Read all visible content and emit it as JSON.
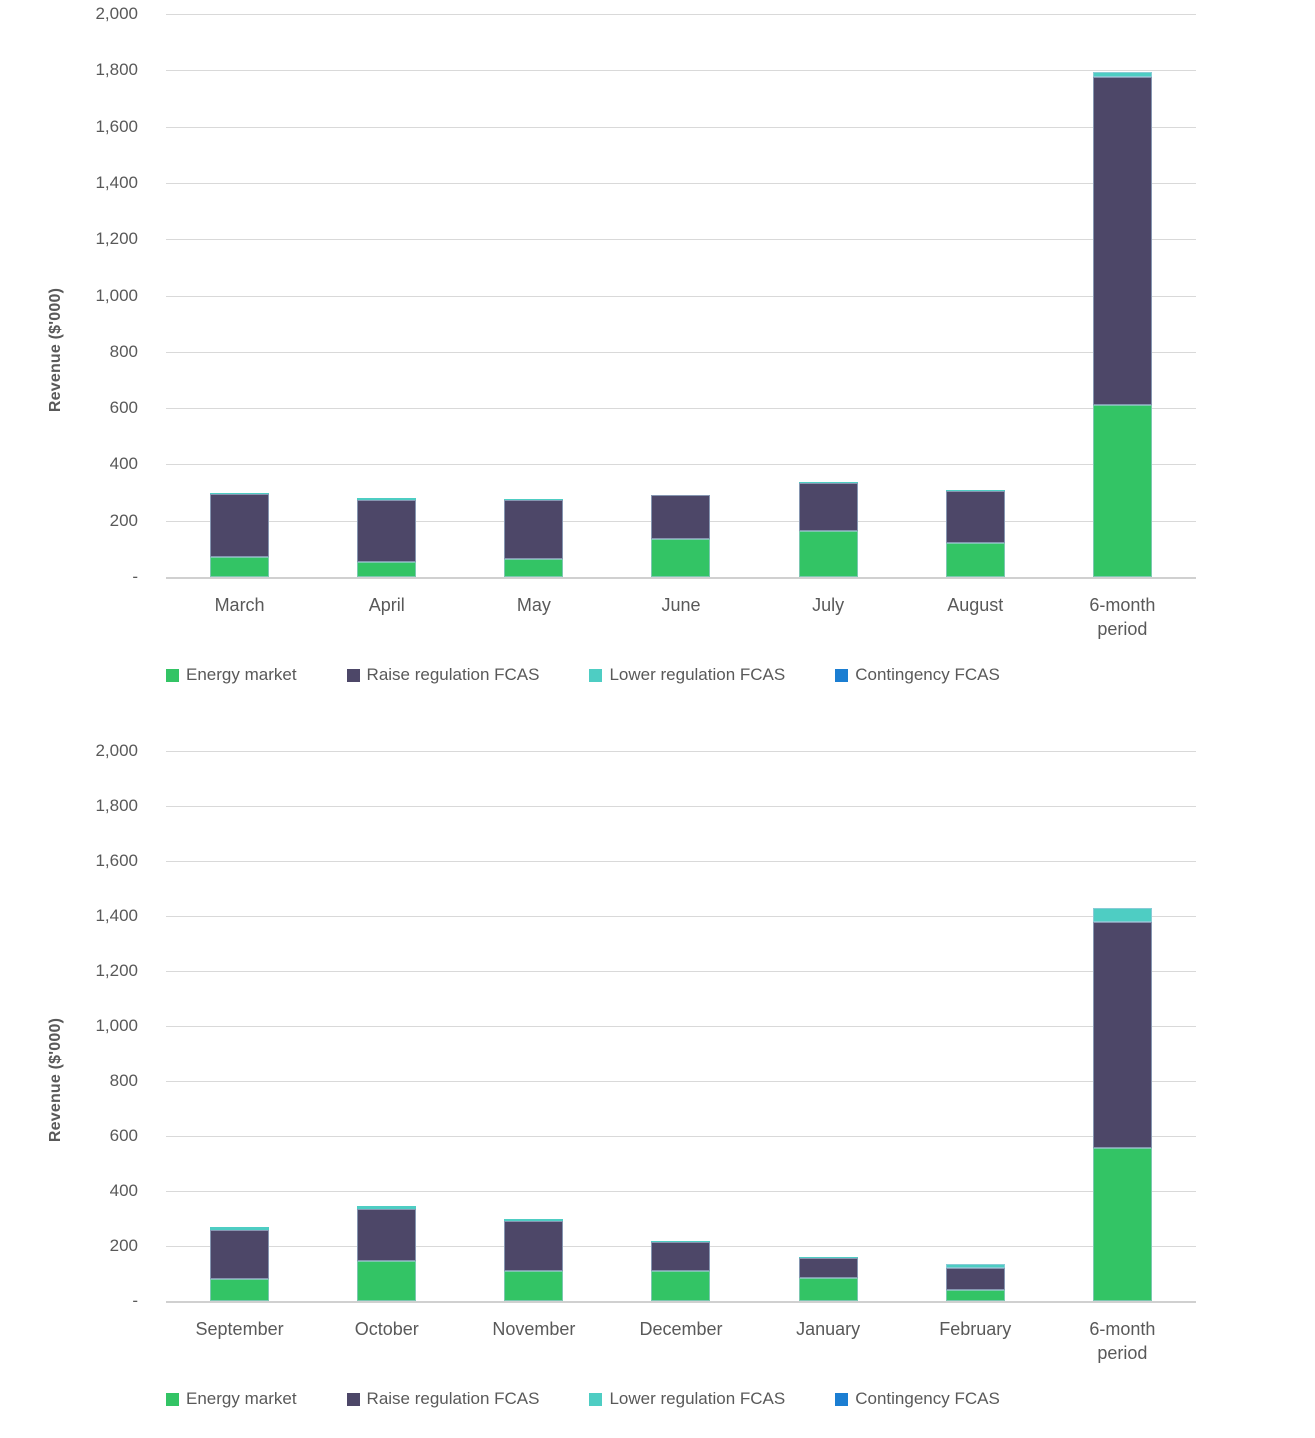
{
  "page": {
    "background": "#ffffff",
    "text_color": "#595959",
    "gridline_color": "#d9d9d9"
  },
  "chart_data": [
    {
      "type": "bar",
      "stacked": true,
      "title": "",
      "xlabel": "",
      "ylabel": "Revenue ($'000)",
      "units": "$'000",
      "ylim": [
        0,
        2000
      ],
      "ytick_step": 200,
      "y_ticks": [
        "2,000",
        "1,800",
        "1,600",
        "1,400",
        "1,200",
        "1,000",
        "800",
        "600",
        "400",
        "200",
        "-"
      ],
      "grid": true,
      "legend_position": "bottom",
      "categories": [
        "March",
        "April",
        "May",
        "June",
        "July",
        "August",
        "6-month period"
      ],
      "series": [
        {
          "name": "Energy market",
          "color": "#33c465",
          "values": [
            70,
            55,
            65,
            135,
            165,
            120,
            610
          ]
        },
        {
          "name": "Raise regulation FCAS",
          "color": "#4d4768",
          "values": [
            225,
            220,
            210,
            155,
            170,
            185,
            1165
          ]
        },
        {
          "name": "Lower regulation FCAS",
          "color": "#4ecdc3",
          "values": [
            5,
            5,
            2,
            2,
            2,
            5,
            20
          ]
        },
        {
          "name": "Contingency FCAS",
          "color": "#1b7ed2",
          "values": [
            0,
            0,
            0,
            0,
            0,
            0,
            0
          ]
        }
      ]
    },
    {
      "type": "bar",
      "stacked": true,
      "title": "",
      "xlabel": "",
      "ylabel": "Revenue ($'000)",
      "units": "$'000",
      "ylim": [
        0,
        2000
      ],
      "ytick_step": 200,
      "y_ticks": [
        "2,000",
        "1,800",
        "1,600",
        "1,400",
        "1,200",
        "1,000",
        "800",
        "600",
        "400",
        "200",
        "-"
      ],
      "grid": true,
      "legend_position": "bottom",
      "categories": [
        "September",
        "October",
        "November",
        "December",
        "January",
        "February",
        "6-month period"
      ],
      "series": [
        {
          "name": "Energy market",
          "color": "#33c465",
          "values": [
            80,
            145,
            110,
            110,
            85,
            40,
            555
          ]
        },
        {
          "name": "Raise regulation FCAS",
          "color": "#4d4768",
          "values": [
            180,
            190,
            180,
            105,
            70,
            80,
            825
          ]
        },
        {
          "name": "Lower regulation FCAS",
          "color": "#4ecdc3",
          "values": [
            10,
            10,
            10,
            5,
            5,
            15,
            50
          ]
        },
        {
          "name": "Contingency FCAS",
          "color": "#1b7ed2",
          "values": [
            0,
            0,
            0,
            0,
            0,
            0,
            0
          ]
        }
      ]
    }
  ]
}
